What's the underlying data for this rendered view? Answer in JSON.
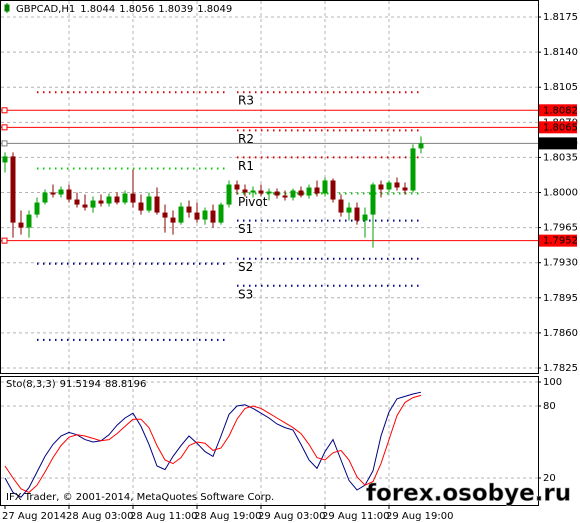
{
  "chart_data": [
    {
      "type": "candlestick",
      "title": "GBPCAD,H1",
      "categories": [
        "27 Aug 2014",
        null,
        null,
        null,
        null,
        null,
        null,
        null,
        "28 Aug 03:00",
        null,
        null,
        null,
        null,
        null,
        null,
        null,
        "28 Aug 11:00",
        null,
        null,
        null,
        null,
        null,
        null,
        null,
        "28 Aug 19:00",
        null,
        null,
        null,
        null,
        null,
        null,
        null,
        "29 Aug 03:00",
        null,
        null,
        null,
        null,
        null,
        null,
        null,
        "29 Aug 11:00",
        null,
        null,
        null,
        null,
        null,
        null,
        null,
        "29 Aug 19:00",
        null,
        null,
        null,
        null
      ],
      "open": [
        1.803,
        1.8036,
        1.797,
        1.7965,
        1.7978,
        1.799,
        1.8,
        1.7998,
        1.8003,
        1.7993,
        1.7988,
        1.7985,
        1.7992,
        1.7989,
        1.7996,
        1.799,
        1.7999,
        1.799,
        1.7982,
        1.7996,
        1.798,
        1.7975,
        1.797,
        1.7986,
        1.798,
        1.7973,
        1.7982,
        1.797,
        1.7988,
        1.8008,
        1.8003,
        1.8,
        1.8002,
        1.7999,
        1.8001,
        1.7997,
        1.7995,
        1.8002,
        1.7997,
        1.8005,
        1.7999,
        1.8012,
        1.7993,
        1.798,
        1.7985,
        1.7972,
        1.7978,
        1.8008,
        1.8003,
        1.801,
        1.8005,
        1.8002,
        1.8044
      ],
      "high": [
        1.804,
        1.804,
        1.7982,
        1.7982,
        1.7995,
        1.8003,
        1.8008,
        1.8006,
        1.8008,
        1.8,
        1.7998,
        1.7996,
        1.7998,
        1.7999,
        1.8,
        1.8002,
        1.8023,
        1.7998,
        1.8,
        1.8005,
        1.7988,
        1.7982,
        1.799,
        1.7992,
        1.799,
        1.7985,
        1.7988,
        1.799,
        1.8012,
        1.8012,
        1.8008,
        1.8006,
        1.8008,
        1.8004,
        1.8004,
        1.8002,
        1.8004,
        1.8006,
        1.8008,
        1.8012,
        1.8015,
        1.8014,
        1.7998,
        1.799,
        1.799,
        1.7985,
        1.801,
        1.8012,
        1.8012,
        1.8015,
        1.801,
        1.8048,
        1.8056
      ],
      "low": [
        1.802,
        1.7955,
        1.7958,
        1.7955,
        1.7975,
        1.7988,
        1.7995,
        1.7995,
        1.799,
        1.7985,
        1.7982,
        1.798,
        1.7986,
        1.7986,
        1.7988,
        1.7988,
        1.7985,
        1.7978,
        1.798,
        1.7978,
        1.796,
        1.7958,
        1.7968,
        1.7975,
        1.797,
        1.7968,
        1.7965,
        1.7968,
        1.7985,
        1.7998,
        1.7996,
        1.7995,
        1.7996,
        1.7992,
        1.7994,
        1.7992,
        1.7992,
        1.7995,
        1.7994,
        1.7996,
        1.7996,
        1.799,
        1.7976,
        1.7972,
        1.7968,
        1.7955,
        1.7945,
        1.7995,
        1.8,
        1.8002,
        1.7998,
        1.8,
        1.8039
      ],
      "close": [
        1.8036,
        1.797,
        1.7965,
        1.7978,
        1.799,
        1.8,
        1.7998,
        1.8003,
        1.7993,
        1.7988,
        1.7985,
        1.7992,
        1.7989,
        1.7996,
        1.799,
        1.7999,
        1.799,
        1.7982,
        1.7996,
        1.798,
        1.7975,
        1.797,
        1.7986,
        1.798,
        1.7973,
        1.7982,
        1.797,
        1.7988,
        1.8008,
        1.8003,
        1.8,
        1.8002,
        1.7999,
        1.8001,
        1.7997,
        1.7995,
        1.8002,
        1.7997,
        1.8005,
        1.7999,
        1.8012,
        1.7993,
        1.798,
        1.7985,
        1.7972,
        1.7978,
        1.8008,
        1.8003,
        1.801,
        1.8005,
        1.8002,
        1.8044,
        1.8049
      ],
      "bull_color": "#00a000",
      "bear_color": "#8b0000",
      "ylim": [
        1.782,
        1.819
      ],
      "yticks": [
        1.8175,
        {
          "value": 1.814,
          "label": "1.8140"
        },
        1.8105,
        {
          "value": 1.807,
          "label": "1.8070"
        },
        1.8035,
        {
          "value": 1.8,
          "label": "1.8000"
        },
        1.7965,
        {
          "value": 1.793,
          "label": "1.7930"
        },
        1.7895,
        {
          "value": 1.786,
          "label": "1.7860"
        },
        1.7825
      ],
      "grid": true,
      "price_markers": [
        {
          "value": 1.8082,
          "color": "#ff0000"
        },
        {
          "value": 1.8065,
          "color": "#ff0000"
        },
        {
          "value": 1.8049,
          "color": "#000000"
        },
        {
          "value": 1.7952,
          "color": "#ff0000"
        }
      ],
      "pivots": [
        {
          "name": "R3",
          "value": 1.81,
          "color": "#e00000"
        },
        {
          "name": "R2",
          "value": 1.8062,
          "color": "#e00000"
        },
        {
          "name": "R1",
          "value": 1.8035,
          "color": "#e00000"
        },
        {
          "name": "Pivot",
          "value": 1.7999,
          "color": "#00d000"
        },
        {
          "name": "S1",
          "value": 1.7972,
          "color": "#000090"
        },
        {
          "name": "S2",
          "value": 1.7934,
          "color": "#000090"
        },
        {
          "name": "S3",
          "value": 1.7907,
          "color": "#000090"
        }
      ],
      "previous_levels": [
        {
          "value": 1.81,
          "color": "#e00000"
        },
        {
          "value": 1.8024,
          "color": "#00d000"
        },
        {
          "value": 1.7929,
          "color": "#000090"
        },
        {
          "value": 1.7853,
          "color": "#000090"
        }
      ]
    },
    {
      "type": "line",
      "title": "Sto(8,3,3)",
      "series": [
        {
          "color": "#000080",
          "values": [
            20,
            8,
            4,
            12,
            25,
            38,
            48,
            55,
            58,
            56,
            52,
            50,
            51,
            56,
            64,
            70,
            74,
            63,
            48,
            30,
            27,
            38,
            47,
            55,
            49,
            42,
            38,
            55,
            73,
            80,
            81,
            78,
            74,
            70,
            65,
            62,
            60,
            48,
            35,
            28,
            42,
            52,
            35,
            18,
            10,
            14,
            26,
            55,
            75,
            86,
            88,
            90,
            91.5194
          ]
        },
        {
          "color": "#ff0000",
          "values": [
            30,
            20,
            11,
            8,
            14,
            25,
            37,
            47,
            54,
            56,
            55,
            53,
            51,
            52,
            57,
            63,
            69,
            69,
            62,
            47,
            35,
            32,
            37,
            47,
            50,
            49,
            43,
            45,
            55,
            69,
            78,
            80,
            78,
            74,
            70,
            66,
            62,
            57,
            48,
            37,
            35,
            41,
            43,
            35,
            21,
            14,
            17,
            32,
            52,
            72,
            83,
            87,
            88.8196
          ]
        }
      ],
      "ylim": [
        0,
        100
      ],
      "yticks": [
        100,
        80,
        20
      ],
      "grid": true
    }
  ],
  "footer": "IFX Trader, © 2001-2014, MetaQuotes Software Corp.",
  "watermark": "forex.osobye.ru"
}
